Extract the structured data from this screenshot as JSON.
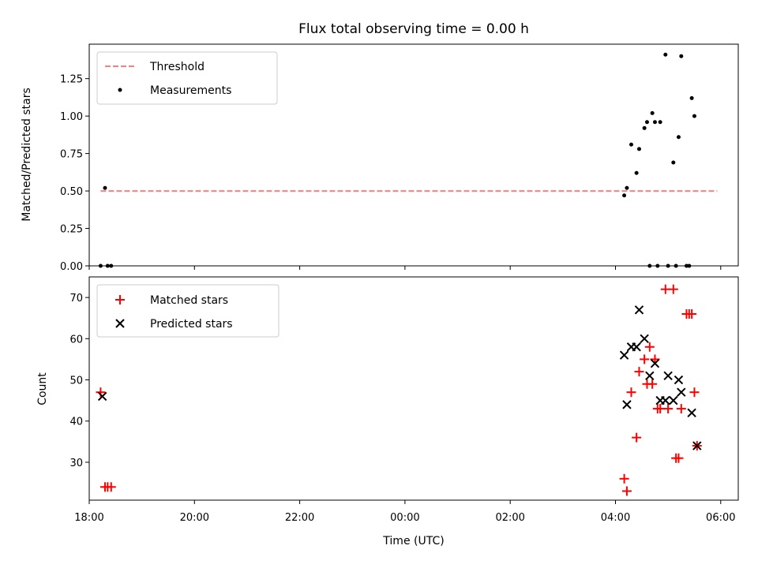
{
  "chart_data": [
    {
      "type": "scatter",
      "title": "Flux total observing time = 0.00 h",
      "ylabel": "Matched/Predicted stars",
      "xlabel": "",
      "xlim": [
        "18:00",
        "06:20"
      ],
      "ylim": [
        0,
        1.48
      ],
      "yticks": [
        "0.00",
        "0.25",
        "0.50",
        "0.75",
        "1.00",
        "1.25"
      ],
      "legend": {
        "placement": "top-left",
        "entries": [
          "Threshold",
          "Measurements"
        ]
      },
      "colors": {
        "threshold": "#ff7f7f",
        "measurements": "#000000"
      },
      "series": [
        {
          "name": "Threshold",
          "kind": "dashed-line",
          "points": [
            [
              "18:13",
              0.5
            ],
            [
              "05:56",
              0.5
            ]
          ]
        },
        {
          "name": "Measurements",
          "kind": "dots",
          "points": [
            [
              "18:13",
              0.0
            ],
            [
              "18:18",
              0.52
            ],
            [
              "18:21",
              0.0
            ],
            [
              "18:25",
              0.0
            ],
            [
              "04:10",
              0.47
            ],
            [
              "04:13",
              0.52
            ],
            [
              "04:18",
              0.81
            ],
            [
              "04:24",
              0.62
            ],
            [
              "04:27",
              0.78
            ],
            [
              "04:33",
              0.92
            ],
            [
              "04:36",
              0.96
            ],
            [
              "04:39",
              0.0
            ],
            [
              "04:42",
              1.02
            ],
            [
              "04:45",
              0.96
            ],
            [
              "04:48",
              0.0
            ],
            [
              "04:51",
              0.96
            ],
            [
              "04:57",
              1.41
            ],
            [
              "05:00",
              0.0
            ],
            [
              "05:06",
              0.69
            ],
            [
              "05:09",
              0.0
            ],
            [
              "05:12",
              0.86
            ],
            [
              "05:15",
              1.4
            ],
            [
              "05:21",
              0.0
            ],
            [
              "05:24",
              0.0
            ],
            [
              "05:27",
              1.12
            ],
            [
              "05:30",
              1.0
            ]
          ]
        }
      ]
    },
    {
      "type": "scatter",
      "title": "",
      "ylabel": "Count",
      "xlabel": "Time (UTC)",
      "xlim": [
        "18:00",
        "06:20"
      ],
      "ylim": [
        20.8,
        75
      ],
      "yticks": [
        "30",
        "40",
        "50",
        "60",
        "70"
      ],
      "xticks": [
        "18:00",
        "20:00",
        "22:00",
        "00:00",
        "02:00",
        "04:00",
        "06:00"
      ],
      "legend": {
        "placement": "top-left",
        "entries": [
          "Matched stars",
          "Predicted stars"
        ]
      },
      "colors": {
        "matched": "#ff0000",
        "predicted": "#000000"
      },
      "series": [
        {
          "name": "Matched stars",
          "kind": "plus",
          "points": [
            [
              "18:13",
              47
            ],
            [
              "18:18",
              24
            ],
            [
              "18:21",
              24
            ],
            [
              "18:25",
              24
            ],
            [
              "04:10",
              26
            ],
            [
              "04:13",
              23
            ],
            [
              "04:18",
              47
            ],
            [
              "04:24",
              36
            ],
            [
              "04:27",
              52
            ],
            [
              "04:33",
              55
            ],
            [
              "04:36",
              49
            ],
            [
              "04:39",
              58
            ],
            [
              "04:42",
              49
            ],
            [
              "04:45",
              55
            ],
            [
              "04:48",
              43
            ],
            [
              "04:51",
              43
            ],
            [
              "04:57",
              72
            ],
            [
              "05:00",
              43
            ],
            [
              "05:06",
              72
            ],
            [
              "05:09",
              31
            ],
            [
              "05:12",
              31
            ],
            [
              "05:15",
              43
            ],
            [
              "05:21",
              66
            ],
            [
              "05:24",
              66
            ],
            [
              "05:27",
              66
            ],
            [
              "05:30",
              47
            ],
            [
              "05:33",
              34
            ]
          ]
        },
        {
          "name": "Predicted stars",
          "kind": "x",
          "points": [
            [
              "18:15",
              46
            ],
            [
              "04:10",
              56
            ],
            [
              "04:13",
              44
            ],
            [
              "04:18",
              58
            ],
            [
              "04:24",
              58
            ],
            [
              "04:27",
              67
            ],
            [
              "04:33",
              60
            ],
            [
              "04:39",
              51
            ],
            [
              "04:45",
              54
            ],
            [
              "04:51",
              45
            ],
            [
              "04:57",
              45
            ],
            [
              "05:00",
              51
            ],
            [
              "05:06",
              45
            ],
            [
              "05:12",
              50
            ],
            [
              "05:15",
              47
            ],
            [
              "05:27",
              42
            ],
            [
              "05:33",
              34
            ]
          ]
        }
      ]
    }
  ]
}
